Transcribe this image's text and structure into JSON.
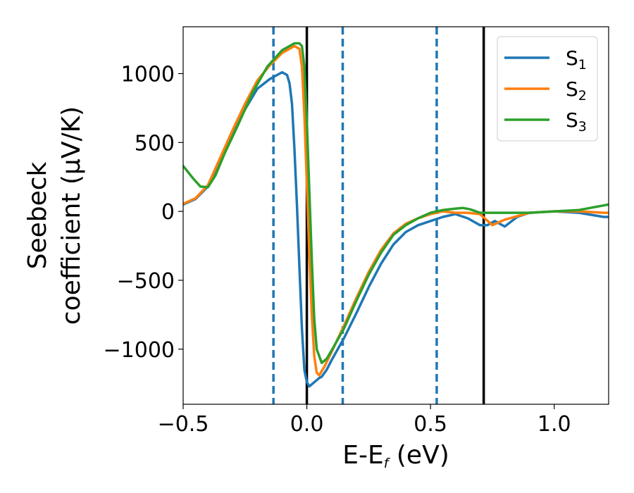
{
  "chart_data": {
    "type": "line",
    "xlabel_main": "E-E",
    "xlabel_sub": "f",
    "xlabel_unit": " (eV)",
    "ylabel_line1": "Seebeck",
    "ylabel_line2": "coefficient  (μV/K)",
    "xlim": [
      -0.5,
      1.22
    ],
    "ylim": [
      -1400,
      1340
    ],
    "xticks": [
      -0.5,
      0.0,
      0.5,
      1.0
    ],
    "xtick_labels": [
      "−0.5",
      "0.0",
      "0.5",
      "1.0"
    ],
    "yticks": [
      1000,
      500,
      0,
      -500,
      -1000
    ],
    "ytick_labels": [
      "1000",
      "500",
      "0",
      "−500",
      "−1000"
    ],
    "grid": false,
    "legend_position": "top-right",
    "vlines_dashed": [
      -0.135,
      0.145,
      0.525
    ],
    "vlines_solid": [
      0.0,
      0.715
    ],
    "series": [
      {
        "name": "S",
        "subscript": "1",
        "color": "#1f77b4",
        "x": [
          -0.5,
          -0.45,
          -0.4,
          -0.35,
          -0.3,
          -0.25,
          -0.2,
          -0.15,
          -0.12,
          -0.1,
          -0.08,
          -0.07,
          -0.06,
          -0.05,
          -0.04,
          -0.03,
          -0.02,
          -0.01,
          0.0,
          0.01,
          0.03,
          0.05,
          0.06,
          0.08,
          0.1,
          0.15,
          0.2,
          0.25,
          0.3,
          0.35,
          0.4,
          0.45,
          0.5,
          0.55,
          0.6,
          0.65,
          0.7,
          0.73,
          0.76,
          0.8,
          0.85,
          0.9,
          1.0,
          1.1,
          1.2,
          1.22
        ],
        "y": [
          50,
          90,
          180,
          370,
          560,
          740,
          890,
          960,
          990,
          1010,
          990,
          930,
          780,
          450,
          50,
          -400,
          -850,
          -1150,
          -1240,
          -1270,
          -1240,
          -1210,
          -1200,
          -1150,
          -1080,
          -920,
          -740,
          -550,
          -380,
          -240,
          -150,
          -100,
          -70,
          -40,
          -20,
          -50,
          -100,
          -100,
          -70,
          -110,
          -40,
          -10,
          0,
          -10,
          -40,
          -40
        ]
      },
      {
        "name": "S",
        "subscript": "2",
        "color": "#ff7f0e",
        "x": [
          -0.5,
          -0.45,
          -0.4,
          -0.35,
          -0.3,
          -0.25,
          -0.2,
          -0.15,
          -0.1,
          -0.05,
          -0.03,
          -0.02,
          -0.01,
          0.0,
          0.01,
          0.02,
          0.03,
          0.04,
          0.05,
          0.07,
          0.1,
          0.15,
          0.2,
          0.25,
          0.3,
          0.35,
          0.4,
          0.45,
          0.5,
          0.55,
          0.6,
          0.65,
          0.7,
          0.75,
          0.8,
          0.9,
          1.0,
          1.1,
          1.2,
          1.22
        ],
        "y": [
          55,
          95,
          190,
          390,
          590,
          780,
          950,
          1060,
          1150,
          1200,
          1180,
          1050,
          700,
          200,
          -300,
          -750,
          -1050,
          -1170,
          -1190,
          -1130,
          -1020,
          -830,
          -630,
          -440,
          -280,
          -160,
          -90,
          -50,
          -20,
          0,
          -10,
          -10,
          -20,
          -100,
          -60,
          -10,
          0,
          0,
          -10,
          -10
        ]
      },
      {
        "name": "S",
        "subscript": "3",
        "color": "#2ca02c",
        "x": [
          -0.5,
          -0.46,
          -0.43,
          -0.4,
          -0.37,
          -0.33,
          -0.28,
          -0.22,
          -0.16,
          -0.1,
          -0.05,
          -0.03,
          -0.02,
          -0.01,
          0.0,
          0.01,
          0.02,
          0.03,
          0.04,
          0.06,
          0.08,
          0.1,
          0.15,
          0.2,
          0.25,
          0.3,
          0.35,
          0.4,
          0.45,
          0.5,
          0.55,
          0.6,
          0.63,
          0.66,
          0.7,
          0.75,
          0.8,
          0.9,
          1.0,
          1.1,
          1.22
        ],
        "y": [
          330,
          240,
          180,
          175,
          260,
          430,
          620,
          860,
          1050,
          1170,
          1220,
          1220,
          1200,
          1050,
          650,
          150,
          -350,
          -780,
          -1000,
          -1100,
          -1070,
          -1010,
          -850,
          -650,
          -460,
          -300,
          -170,
          -100,
          -50,
          -10,
          10,
          20,
          25,
          15,
          -10,
          -10,
          -10,
          -10,
          0,
          10,
          50
        ]
      }
    ]
  }
}
